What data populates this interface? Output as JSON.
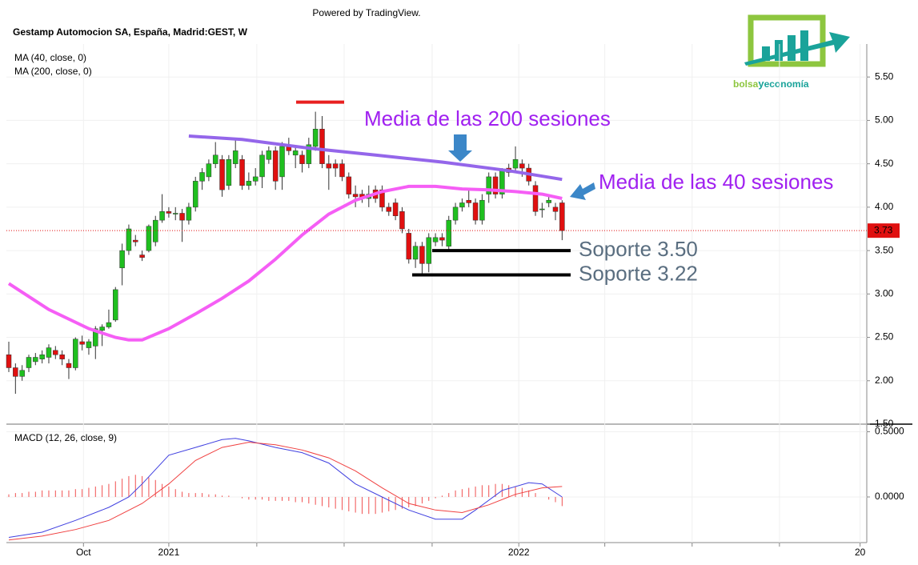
{
  "header": {
    "powered": "Powered by TradingView.",
    "symbol": "Gestamp Automocion SA, España, Madrid:GEST, W"
  },
  "logo": {
    "part1": "bolsa",
    "part2": "y",
    "part3": "economía"
  },
  "chart_data": [
    {
      "type": "candlestick",
      "xlim": [
        -0.36,
        128.7
      ],
      "xticks": [
        {
          "value": 11.2,
          "label": "Oct"
        },
        {
          "value": 24,
          "label": "2021"
        },
        {
          "value": 37.2,
          "label": null
        },
        {
          "value": 50.3,
          "label": null
        },
        {
          "value": 63.5,
          "label": null
        },
        {
          "value": 76.5,
          "label": "2022"
        },
        {
          "value": 89.4,
          "label": null
        },
        {
          "value": 102.5,
          "label": null
        },
        {
          "value": 115.6,
          "label": null
        },
        {
          "value": 127.7,
          "label": "20"
        }
      ],
      "ylim": [
        1.5,
        5.88
      ],
      "yticks": [
        {
          "value": 1.5,
          "label": "1.50"
        },
        {
          "value": 2,
          "label": "2.00"
        },
        {
          "value": 2.5,
          "label": "2.50"
        },
        {
          "value": 3,
          "label": "3.00"
        },
        {
          "value": 3.5,
          "label": "3.50"
        },
        {
          "value": 4,
          "label": "4.00"
        },
        {
          "value": 4.5,
          "label": "4.50"
        },
        {
          "value": 5,
          "label": "5.00"
        },
        {
          "value": 5.5,
          "label": "5.50"
        }
      ],
      "grid": true,
      "up_color": "#1fbf1f",
      "down_color": "#e01010",
      "open": [
        2.3,
        2.15,
        2.05,
        2.15,
        2.22,
        2.25,
        2.27,
        2.35,
        2.3,
        2.2,
        2.15,
        2.45,
        2.38,
        2.4,
        2.58,
        2.62,
        2.7,
        3.3,
        3.5,
        3.62,
        3.45,
        3.5,
        3.6,
        3.85,
        3.95,
        3.92,
        3.93,
        3.85,
        4.0,
        4.3,
        4.35,
        4.5,
        4.55,
        4.25,
        4.5,
        4.55,
        4.25,
        4.3,
        4.35,
        4.55,
        4.65,
        4.35,
        4.7,
        4.6,
        4.6,
        4.5,
        4.7,
        4.9,
        4.5,
        4.5,
        4.5,
        4.35,
        4.15,
        4.15,
        4.1,
        4.2,
        4.2,
        4.0,
        4.05,
        3.95,
        3.7,
        3.4,
        3.55,
        3.35,
        3.6,
        3.65,
        3.55,
        3.85,
        4.0,
        4.08,
        4.05,
        3.85,
        4.15,
        4.35,
        4.15,
        4.45,
        4.45,
        4.5,
        4.45,
        4.25,
        3.97,
        4.05,
        4.0,
        4.05
      ],
      "high": [
        2.45,
        2.2,
        2.18,
        2.3,
        2.32,
        2.35,
        2.42,
        2.4,
        2.35,
        2.25,
        2.5,
        2.52,
        2.48,
        2.63,
        2.65,
        2.82,
        3.08,
        3.58,
        3.8,
        3.68,
        3.5,
        3.8,
        3.9,
        4.15,
        4.0,
        4.0,
        3.98,
        4.05,
        4.35,
        4.45,
        4.55,
        4.75,
        4.6,
        4.6,
        4.8,
        4.6,
        4.4,
        4.45,
        4.65,
        4.7,
        4.7,
        4.75,
        4.8,
        4.7,
        4.65,
        4.8,
        5.1,
        5.05,
        4.6,
        4.55,
        4.55,
        4.4,
        4.25,
        4.2,
        4.25,
        4.25,
        4.25,
        4.05,
        4.1,
        4.0,
        3.75,
        3.6,
        3.6,
        3.7,
        3.7,
        3.7,
        3.9,
        4.05,
        4.1,
        4.2,
        4.1,
        4.15,
        4.4,
        4.4,
        4.45,
        4.5,
        4.7,
        4.55,
        4.5,
        4.3,
        4.05,
        4.12,
        4.05,
        4.08
      ],
      "low": [
        2.1,
        1.85,
        2.0,
        2.1,
        2.18,
        2.2,
        2.2,
        2.25,
        2.18,
        2.02,
        2.12,
        2.35,
        2.3,
        2.25,
        2.4,
        2.6,
        2.68,
        3.1,
        3.45,
        3.55,
        3.38,
        3.48,
        3.55,
        3.82,
        3.88,
        3.85,
        3.6,
        3.8,
        3.95,
        4.2,
        4.3,
        4.45,
        4.12,
        4.2,
        4.45,
        4.2,
        4.2,
        4.25,
        4.22,
        4.5,
        4.2,
        4.2,
        4.6,
        4.45,
        4.4,
        4.45,
        4.65,
        4.45,
        4.2,
        4.35,
        4.3,
        4.1,
        4.0,
        4.05,
        4.0,
        4.05,
        3.95,
        3.9,
        3.85,
        3.7,
        3.35,
        3.3,
        3.22,
        3.25,
        3.55,
        3.55,
        3.5,
        3.8,
        3.95,
        4.0,
        3.8,
        3.8,
        4.05,
        4.1,
        4.1,
        4.35,
        4.4,
        4.35,
        4.25,
        3.9,
        3.88,
        4.0,
        3.85,
        3.62
      ],
      "close": [
        2.15,
        2.05,
        2.12,
        2.27,
        2.27,
        2.3,
        2.38,
        2.3,
        2.25,
        2.15,
        2.48,
        2.42,
        2.45,
        2.6,
        2.62,
        2.67,
        3.05,
        3.5,
        3.75,
        3.6,
        3.42,
        3.78,
        3.85,
        3.95,
        3.93,
        3.93,
        3.85,
        4.0,
        4.3,
        4.4,
        4.5,
        4.6,
        4.2,
        4.55,
        4.65,
        4.25,
        4.3,
        4.35,
        4.6,
        4.65,
        4.3,
        4.7,
        4.65,
        4.65,
        4.5,
        4.72,
        4.9,
        4.5,
        4.45,
        4.45,
        4.35,
        4.15,
        4.12,
        4.1,
        4.15,
        4.1,
        4.0,
        3.95,
        3.9,
        3.75,
        3.4,
        3.55,
        3.35,
        3.65,
        3.65,
        3.62,
        3.85,
        4.0,
        4.05,
        4.05,
        3.85,
        4.08,
        4.35,
        4.15,
        4.42,
        4.4,
        4.55,
        4.45,
        4.3,
        3.95,
        3.98,
        4.08,
        3.95,
        3.73
      ],
      "series": [
        {
          "name": "MA (40, close, 0)",
          "color": "#f55ef5",
          "x": [
            0,
            6,
            12,
            16,
            18,
            20,
            24,
            28,
            32,
            36,
            40,
            44,
            48,
            52,
            56,
            60,
            64,
            68,
            72,
            76,
            80,
            83
          ],
          "values": [
            3.12,
            2.82,
            2.6,
            2.5,
            2.47,
            2.47,
            2.6,
            2.77,
            2.95,
            3.15,
            3.4,
            3.68,
            3.92,
            4.08,
            4.18,
            4.24,
            4.24,
            4.21,
            4.2,
            4.18,
            4.15,
            4.1
          ]
        },
        {
          "name": "MA (200, close, 0)",
          "color": "#9466ea",
          "x": [
            27,
            35,
            45,
            55,
            65,
            75,
            83
          ],
          "values": [
            4.82,
            4.78,
            4.68,
            4.6,
            4.52,
            4.42,
            4.32
          ]
        }
      ],
      "last_price": 3.73,
      "last_price_color": "#e01010",
      "resistance": 5.1,
      "resistance_color": "#e82020",
      "levels": [
        {
          "label": "Soporte 3.50",
          "value": 3.5
        },
        {
          "label": "Soporte 3.22",
          "value": 3.22
        }
      ],
      "annotations": [
        "Media de las 200 sesiones",
        "Media de las 40 sesiones"
      ]
    },
    {
      "type": "macd",
      "title": "MACD (12, 26, close, 9)",
      "xlim": [
        -0.36,
        128.7
      ],
      "ylim": [
        -0.35,
        0.54
      ],
      "yticks": [
        {
          "value": 0.5,
          "label": "0.5000"
        },
        {
          "value": 0,
          "label": "0.0000"
        }
      ],
      "series": [
        {
          "name": "MACD",
          "color": "#4040e0",
          "x": [
            0,
            5,
            10,
            15,
            18,
            20,
            24,
            28,
            32,
            34,
            36,
            40,
            44,
            48,
            52,
            56,
            60,
            64,
            68,
            70,
            74,
            78,
            80,
            83
          ],
          "values": [
            -0.31,
            -0.27,
            -0.18,
            -0.08,
            0.0,
            0.1,
            0.32,
            0.38,
            0.44,
            0.45,
            0.43,
            0.38,
            0.34,
            0.26,
            0.1,
            0.0,
            -0.1,
            -0.17,
            -0.17,
            -0.1,
            0.05,
            0.11,
            0.1,
            0.0
          ]
        },
        {
          "name": "Signal",
          "color": "#f04040",
          "x": [
            0,
            5,
            10,
            15,
            20,
            24,
            28,
            32,
            36,
            40,
            44,
            48,
            52,
            56,
            60,
            64,
            68,
            72,
            76,
            80,
            83
          ],
          "values": [
            -0.33,
            -0.3,
            -0.25,
            -0.18,
            -0.05,
            0.1,
            0.28,
            0.38,
            0.42,
            0.4,
            0.36,
            0.3,
            0.2,
            0.07,
            -0.05,
            -0.1,
            -0.12,
            -0.06,
            0.02,
            0.07,
            0.08
          ]
        }
      ],
      "histogram_color": "#f05050",
      "histogram": [
        0.02,
        0.03,
        0.03,
        0.04,
        0.04,
        0.05,
        0.05,
        0.05,
        0.05,
        0.05,
        0.06,
        0.06,
        0.07,
        0.08,
        0.09,
        0.1,
        0.12,
        0.14,
        0.16,
        0.17,
        0.16,
        0.15,
        0.13,
        0.1,
        0.08,
        0.06,
        0.04,
        0.03,
        0.03,
        0.03,
        0.02,
        0.02,
        0.01,
        0.01,
        0.0,
        -0.01,
        -0.02,
        -0.02,
        -0.02,
        -0.03,
        -0.03,
        -0.03,
        -0.03,
        -0.04,
        -0.04,
        -0.05,
        -0.06,
        -0.07,
        -0.08,
        -0.09,
        -0.1,
        -0.11,
        -0.12,
        -0.13,
        -0.13,
        -0.13,
        -0.12,
        -0.11,
        -0.1,
        -0.09,
        -0.08,
        -0.07,
        -0.05,
        -0.03,
        -0.01,
        0.01,
        0.03,
        0.05,
        0.06,
        0.07,
        0.08,
        0.09,
        0.09,
        0.1,
        0.1,
        0.09,
        0.08,
        0.07,
        0.05,
        0.03,
        0.0,
        -0.02,
        -0.04,
        -0.07
      ]
    }
  ]
}
